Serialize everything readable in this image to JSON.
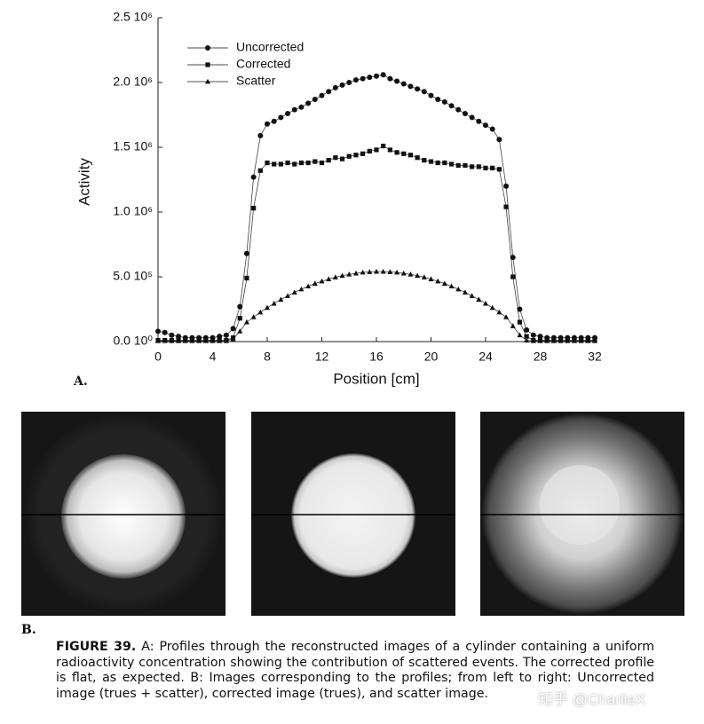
{
  "chart_data": {
    "type": "line",
    "ylabel": "Activity",
    "xlabel": "Position [cm]",
    "x": [
      0,
      0.5,
      1,
      1.5,
      2,
      2.5,
      3,
      3.5,
      4,
      4.5,
      5,
      5.5,
      6,
      6.5,
      7,
      7.5,
      8,
      8.5,
      9,
      9.5,
      10,
      10.5,
      11,
      11.5,
      12,
      12.5,
      13,
      13.5,
      14,
      14.5,
      15,
      15.5,
      16,
      16.5,
      17,
      17.5,
      18,
      18.5,
      19,
      19.5,
      20,
      20.5,
      21,
      21.5,
      22,
      22.5,
      23,
      23.5,
      24,
      24.5,
      25,
      25.5,
      26,
      26.5,
      27,
      27.5,
      28,
      28.5,
      29,
      29.5,
      30,
      30.5,
      31,
      31.5,
      32
    ],
    "series": [
      {
        "name": "Uncorrected",
        "color": "#111111",
        "marker": "circle",
        "values": [
          80000,
          70000,
          50000,
          40000,
          30000,
          30000,
          30000,
          30000,
          30000,
          40000,
          50000,
          100000,
          270000,
          680000,
          1270000,
          1590000,
          1680000,
          1700000,
          1730000,
          1760000,
          1790000,
          1810000,
          1840000,
          1870000,
          1900000,
          1930000,
          1960000,
          1980000,
          2000000,
          2020000,
          2030000,
          2040000,
          2050000,
          2060000,
          2030000,
          2010000,
          1990000,
          1970000,
          1950000,
          1930000,
          1900000,
          1870000,
          1850000,
          1820000,
          1790000,
          1760000,
          1730000,
          1700000,
          1670000,
          1640000,
          1560000,
          1200000,
          650000,
          250000,
          90000,
          50000,
          40000,
          30000,
          30000,
          30000,
          30000,
          30000,
          30000,
          30000,
          30000
        ]
      },
      {
        "name": "Corrected",
        "color": "#111111",
        "marker": "square",
        "values": [
          10000,
          10000,
          10000,
          10000,
          10000,
          10000,
          10000,
          10000,
          10000,
          10000,
          10000,
          30000,
          180000,
          490000,
          1030000,
          1320000,
          1380000,
          1370000,
          1370000,
          1380000,
          1370000,
          1380000,
          1380000,
          1390000,
          1380000,
          1400000,
          1420000,
          1410000,
          1430000,
          1440000,
          1450000,
          1470000,
          1480000,
          1510000,
          1480000,
          1460000,
          1450000,
          1440000,
          1420000,
          1400000,
          1390000,
          1380000,
          1380000,
          1370000,
          1360000,
          1360000,
          1350000,
          1350000,
          1340000,
          1340000,
          1330000,
          1040000,
          500000,
          150000,
          40000,
          10000,
          10000,
          10000,
          10000,
          10000,
          10000,
          10000,
          10000,
          10000,
          10000
        ]
      },
      {
        "name": "Scatter",
        "color": "#111111",
        "marker": "triangle",
        "values": [
          5000,
          5000,
          5000,
          5000,
          5000,
          5000,
          5000,
          5000,
          5000,
          5000,
          5000,
          20000,
          80000,
          150000,
          189000,
          226000,
          261000,
          294000,
          325000,
          353000,
          380000,
          404000,
          427000,
          448000,
          466000,
          482000,
          497000,
          509000,
          519000,
          527000,
          534000,
          538000,
          540000,
          540000,
          538000,
          534000,
          527000,
          519000,
          509000,
          497000,
          482000,
          466000,
          448000,
          427000,
          404000,
          380000,
          353000,
          325000,
          294000,
          261000,
          226000,
          189000,
          120000,
          50000,
          10000,
          5000,
          5000,
          5000,
          5000,
          5000,
          5000,
          5000,
          5000,
          5000,
          5000
        ]
      }
    ],
    "xlim": [
      0,
      32
    ],
    "xticks": [
      0,
      4,
      8,
      12,
      16,
      20,
      24,
      28,
      32
    ],
    "ylim": [
      0,
      2500000
    ],
    "yticks": [
      {
        "value": 0,
        "label": "0.0 10⁰"
      },
      {
        "value": 500000,
        "label": "5.0 10⁵"
      },
      {
        "value": 1000000,
        "label": "1.0 10⁶"
      },
      {
        "value": 1500000,
        "label": "1.5 10⁶"
      },
      {
        "value": 2000000,
        "label": "2.0 10⁶"
      },
      {
        "value": 2500000,
        "label": "2.5 10⁶"
      }
    ],
    "legend": "upper left",
    "grid": false
  },
  "panel_a_label": "A.",
  "panel_b_label": "B.",
  "caption": {
    "label": "FIGURE 39.",
    "text": "A: Profiles through the reconstructed images of a cylinder containing a uniform radioactivity concentration showing the contribution of scattered events. The corrected profile is flat, as expected. B: Images corresponding to the profiles; from left to right: Uncorrected image (trues + scatter), corrected image (trues), and scatter image."
  },
  "watermark": "知乎 @CharlieX"
}
